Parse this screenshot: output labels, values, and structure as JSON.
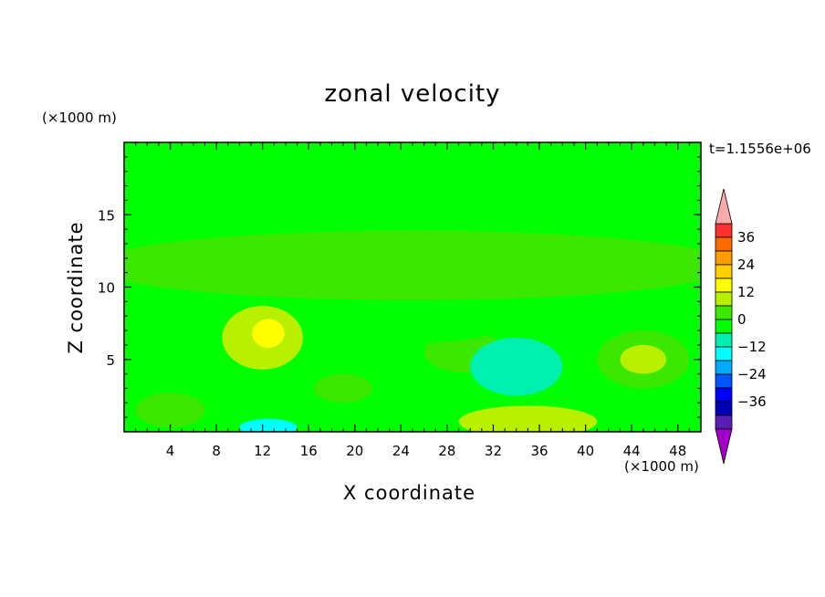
{
  "chart_data": {
    "type": "heatmap",
    "title": "zonal velocity",
    "xlabel": "X coordinate",
    "ylabel": "Z coordinate",
    "x_unit": "(×1000 m)",
    "z_unit": "(×1000 m)",
    "timestamp": "t=1.1556e+06",
    "xlim": [
      0,
      50
    ],
    "ylim": [
      0,
      20
    ],
    "x_ticks": [
      4,
      8,
      12,
      16,
      20,
      24,
      28,
      32,
      36,
      40,
      44,
      48
    ],
    "y_ticks": [
      5,
      10,
      15
    ],
    "colorbar": {
      "labels": [
        36,
        24,
        12,
        0,
        -12,
        -24,
        -36
      ],
      "levels": [
        42,
        36,
        30,
        24,
        18,
        12,
        6,
        0,
        -6,
        -12,
        -18,
        -24,
        -30,
        -36,
        -42
      ],
      "colors": [
        "#ff3030",
        "#ff6a00",
        "#ff9c00",
        "#ffd000",
        "#ffff00",
        "#b8f000",
        "#3ce800",
        "#00ff00",
        "#00f0b0",
        "#00ffff",
        "#00aaff",
        "#0055ff",
        "#0000ff",
        "#0000b4",
        "#5a1eb4"
      ],
      "over_color": "#ffaaaa",
      "under_color": "#a000c8"
    },
    "features": [
      {
        "x": 25,
        "z": 11.5,
        "rx": 28,
        "rz": 2.4,
        "value": 3
      },
      {
        "x": 12,
        "z": 6.5,
        "rx": 3.5,
        "rz": 2.2,
        "value": 8
      },
      {
        "x": 12.5,
        "z": 6.8,
        "rx": 1.4,
        "rz": 1.0,
        "value": 14
      },
      {
        "x": 19,
        "z": 3,
        "rx": 2.5,
        "rz": 1.0,
        "value": 5
      },
      {
        "x": 29.5,
        "z": 5.5,
        "rx": 3.5,
        "rz": 1.4,
        "value": 5
      },
      {
        "x": 45,
        "z": 5,
        "rx": 4,
        "rz": 2.0,
        "value": 5
      },
      {
        "x": 45,
        "z": 5,
        "rx": 2,
        "rz": 1.0,
        "value": 9
      },
      {
        "x": 35,
        "z": 0.7,
        "rx": 6,
        "rz": 1.1,
        "value": 8
      },
      {
        "x": 35,
        "z": 0.5,
        "rx": 3,
        "rz": 0.6,
        "value": 12
      },
      {
        "x": 4,
        "z": 1.5,
        "rx": 3,
        "rz": 1.2,
        "value": 5
      },
      {
        "x": 34,
        "z": 4.5,
        "rx": 4,
        "rz": 2.0,
        "value": -8
      },
      {
        "x": 12.5,
        "z": 0.3,
        "rx": 2.5,
        "rz": 0.6,
        "value": -15
      },
      {
        "x": 45,
        "z": 1.3,
        "rx": 2.5,
        "rz": 0.6,
        "value": -4
      },
      {
        "x": 24,
        "z": 7,
        "rx": 8,
        "rz": 0.9,
        "value": -3
      },
      {
        "x": 40,
        "z": 16.5,
        "rx": 12,
        "rz": 1.5,
        "value": -3
      },
      {
        "x": 44,
        "z": 11,
        "rx": 0.8,
        "rz": 0.5,
        "value": 6
      }
    ],
    "background_value": -3
  }
}
